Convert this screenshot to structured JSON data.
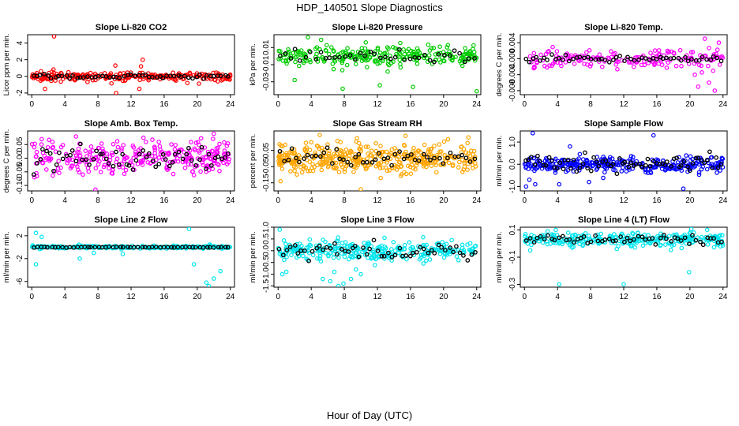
{
  "figure": {
    "title": "HDP_140501  Slope Diagnostics",
    "xlabel": "Hour of Day (UTC)"
  },
  "chart_data": [
    {
      "type": "scatter",
      "title": "Slope Li-820 CO2",
      "ylabel": "Licor ppm per min.",
      "color": "#ff0000",
      "xlim": [
        -0.5,
        24.5
      ],
      "xticks": [
        0,
        4,
        8,
        12,
        16,
        20,
        24
      ],
      "ylim": [
        -2.2,
        5
      ],
      "yticks": [
        -2,
        0,
        2,
        4
      ],
      "ytick_labels": [
        "-2",
        "0",
        "2",
        "4"
      ],
      "center": 0,
      "spread": 0.25,
      "n_points": 240,
      "n_black": 55,
      "black_spread": 0.12,
      "outliers": [
        [
          2.7,
          4.8
        ],
        [
          1.6,
          -1.5
        ],
        [
          10.1,
          1.3
        ],
        [
          10.2,
          -2.0
        ],
        [
          13.4,
          2.0
        ],
        [
          13.2,
          1.2
        ],
        [
          13.0,
          -1.5
        ],
        [
          18.8,
          -0.8
        ],
        [
          22.5,
          -0.6
        ]
      ]
    },
    {
      "type": "scatter",
      "title": "Slope Li-820 Pressure",
      "ylabel": "kPa per min.",
      "color": "#00cc00",
      "xlim": [
        -0.5,
        24.5
      ],
      "xticks": [
        0,
        4,
        8,
        12,
        16,
        20,
        24
      ],
      "ylim": [
        -0.045,
        0.025
      ],
      "yticks": [
        -0.03,
        -0.01,
        0.01
      ],
      "ytick_labels": [
        "-0.03",
        "-0.01",
        "0.01"
      ],
      "center": 0.0,
      "spread": 0.006,
      "n_points": 260,
      "n_black": 40,
      "black_spread": 0.005,
      "outliers": [
        [
          2.0,
          -0.028
        ],
        [
          3.6,
          0.022
        ],
        [
          7.8,
          -0.038
        ],
        [
          12.3,
          -0.034
        ],
        [
          16.3,
          -0.036
        ],
        [
          24.0,
          -0.041
        ],
        [
          5.2,
          0.019
        ],
        [
          10.6,
          0.016
        ]
      ]
    },
    {
      "type": "scatter",
      "title": "Slope Li-820 Temp.",
      "ylabel": "degrees C per min.",
      "color": "#ff00ff",
      "xlim": [
        -0.5,
        24.5
      ],
      "xticks": [
        0,
        4,
        8,
        12,
        16,
        20,
        24
      ],
      "ylim": [
        -0.009,
        0.006
      ],
      "yticks": [
        -0.008,
        -0.004,
        0.0,
        0.004
      ],
      "ytick_labels": [
        "-0.008",
        "-0.004",
        "0.000",
        "0.004"
      ],
      "center": 0.0,
      "spread": 0.0012,
      "n_points": 180,
      "n_black": 55,
      "black_spread": 0.0004,
      "outliers": [
        [
          21.0,
          -0.007
        ],
        [
          22.3,
          -0.006
        ],
        [
          23.0,
          -0.008
        ],
        [
          21.8,
          0.005
        ],
        [
          23.5,
          0.004
        ],
        [
          22.8,
          -0.003
        ],
        [
          20.6,
          -0.004
        ],
        [
          1.2,
          -0.002
        ]
      ]
    },
    {
      "type": "scatter",
      "title": "Slope Amb. Box Temp.",
      "ylabel": "degrees C per min.",
      "color": "#ff00ff",
      "xlim": [
        -0.5,
        24.5
      ],
      "xticks": [
        0,
        4,
        8,
        12,
        16,
        20,
        24
      ],
      "ylim": [
        -0.12,
        0.1
      ],
      "yticks": [
        -0.1,
        -0.05,
        0.0,
        0.05
      ],
      "ytick_labels": [
        "-0.10",
        "-0.05",
        "0.00",
        "0.05"
      ],
      "center": 0.0,
      "spread": 0.03,
      "n_points": 300,
      "n_black": 60,
      "black_spread": 0.025,
      "outliers": [
        [
          7.7,
          -0.115
        ],
        [
          22.0,
          0.09
        ],
        [
          1.2,
          0.07
        ],
        [
          13.5,
          0.075
        ]
      ]
    },
    {
      "type": "scatter",
      "title": "Slope Gas Stream RH",
      "ylabel": "percent per min.",
      "color": "#ffa500",
      "xlim": [
        -0.5,
        24.5
      ],
      "xticks": [
        0,
        4,
        8,
        12,
        16,
        20,
        24
      ],
      "ylim": [
        -0.2,
        0.17
      ],
      "yticks": [
        -0.15,
        -0.05,
        0.05
      ],
      "ytick_labels": [
        "-0.15",
        "-0.05",
        "0.05"
      ],
      "center": 0.0,
      "spread": 0.045,
      "n_points": 420,
      "n_black": 50,
      "black_spread": 0.025,
      "outliers": [
        [
          10.0,
          -0.19
        ],
        [
          12.4,
          -0.12
        ],
        [
          15.4,
          0.14
        ],
        [
          23.0,
          0.13
        ],
        [
          0.3,
          -0.14
        ]
      ]
    },
    {
      "type": "scatter",
      "title": "Slope Sample Flow",
      "ylabel": "ml/min per min.",
      "color": "#0000ff",
      "xlim": [
        -0.5,
        24.5
      ],
      "xticks": [
        0,
        4,
        8,
        12,
        16,
        20,
        24
      ],
      "ylim": [
        -1.2,
        1.5
      ],
      "yticks": [
        -1.0,
        0.0,
        1.0
      ],
      "ytick_labels": [
        "-1.0",
        "0.0",
        "1.0"
      ],
      "center": 0.0,
      "spread": 0.17,
      "n_points": 320,
      "n_black": 70,
      "black_spread": 0.2,
      "outliers": [
        [
          0.2,
          -1.0
        ],
        [
          0.6,
          -0.7
        ],
        [
          1.3,
          -0.9
        ],
        [
          1.0,
          1.4
        ],
        [
          4.2,
          -0.9
        ],
        [
          7.8,
          -0.8
        ],
        [
          15.6,
          1.3
        ],
        [
          19.2,
          -1.1
        ],
        [
          5.5,
          0.8
        ]
      ]
    },
    {
      "type": "scatter",
      "title": "Slope Line 2 Flow",
      "ylabel": "ml/min per min.",
      "color": "#00e5ee",
      "xlim": [
        -0.5,
        24.5
      ],
      "xticks": [
        0,
        4,
        8,
        12,
        16,
        20,
        24
      ],
      "ylim": [
        -7,
        3.5
      ],
      "yticks": [
        -6,
        -2,
        2
      ],
      "ytick_labels": [
        "-6",
        "-2",
        "2"
      ],
      "center": 0.0,
      "spread": 0.12,
      "n_points": 260,
      "n_black": 55,
      "black_spread": 0.03,
      "outliers": [
        [
          0.5,
          -3.0
        ],
        [
          0.5,
          2.5
        ],
        [
          1.2,
          1.8
        ],
        [
          5.8,
          -2.0
        ],
        [
          7.5,
          -1.0
        ],
        [
          11.0,
          -1.2
        ],
        [
          19.0,
          3.2
        ],
        [
          19.6,
          -3.0
        ],
        [
          21.4,
          -6.8
        ],
        [
          22.0,
          -5.5
        ],
        [
          22.8,
          -4.2
        ],
        [
          21.1,
          -6.2
        ]
      ]
    },
    {
      "type": "scatter",
      "title": "Slope Line 3 Flow",
      "ylabel": "ml/min per min.",
      "color": "#00e5ee",
      "xlim": [
        -0.5,
        24.5
      ],
      "xticks": [
        0,
        4,
        8,
        12,
        16,
        20,
        24
      ],
      "ylim": [
        -1.55,
        1.0
      ],
      "yticks": [
        -1.5,
        -1.0,
        -0.5,
        0.0,
        0.5,
        1.0
      ],
      "ytick_labels": [
        "-1.5",
        "-1.0",
        "-0.5",
        "0.0",
        "0.5",
        "1.0"
      ],
      "center": 0.0,
      "spread": 0.2,
      "n_points": 300,
      "n_black": 55,
      "black_spread": 0.15,
      "outliers": [
        [
          0.2,
          0.9
        ],
        [
          0.5,
          -1.0
        ],
        [
          1.0,
          -0.9
        ],
        [
          5.4,
          -1.2
        ],
        [
          6.3,
          -1.3
        ],
        [
          7.3,
          -1.5
        ],
        [
          7.9,
          -1.4
        ],
        [
          8.8,
          -1.2
        ],
        [
          10.0,
          -1.0
        ],
        [
          9.4,
          -0.8
        ],
        [
          6.8,
          -0.9
        ]
      ]
    },
    {
      "type": "scatter",
      "title": "Slope Line 4 (LT) Flow",
      "ylabel": "ml/min per min.",
      "color": "#00e5ee",
      "xlim": [
        -0.5,
        24.5
      ],
      "xticks": [
        0,
        4,
        8,
        12,
        16,
        20,
        24
      ],
      "ylim": [
        -0.32,
        0.12
      ],
      "yticks": [
        -0.3,
        -0.1,
        0.1
      ],
      "ytick_labels": [
        "-0.3",
        "-0.1",
        "0.1"
      ],
      "center": 0.03,
      "spread": 0.025,
      "n_points": 300,
      "n_black": 55,
      "black_spread": 0.02,
      "outliers": [
        [
          4.2,
          -0.3
        ],
        [
          12.0,
          -0.3
        ],
        [
          19.9,
          -0.21
        ],
        [
          0.7,
          -0.05
        ],
        [
          2.8,
          0.09
        ]
      ]
    }
  ]
}
